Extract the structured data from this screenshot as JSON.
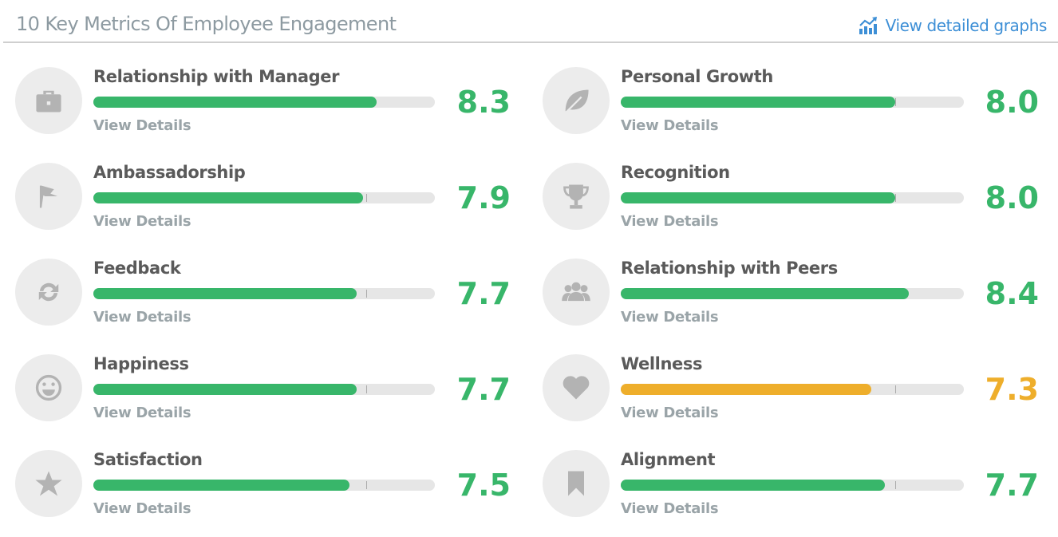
{
  "header": {
    "title": "10 Key Metrics Of Employee Engagement",
    "link_label": "View detailed graphs",
    "link_icon": "chart-line-icon"
  },
  "details_label": "View Details",
  "scale_max": 10,
  "benchmark": 8.0,
  "colors": {
    "good": "#38b66a",
    "warning": "#eeae2b",
    "link": "#3d8fd6",
    "icon": "#b3b3b3"
  },
  "metrics": [
    {
      "name": "Relationship with Manager",
      "value": "8.3",
      "icon": "briefcase-icon",
      "status": "good"
    },
    {
      "name": "Ambassadorship",
      "value": "7.9",
      "icon": "flag-icon",
      "status": "good"
    },
    {
      "name": "Feedback",
      "value": "7.7",
      "icon": "refresh-icon",
      "status": "good"
    },
    {
      "name": "Happiness",
      "value": "7.7",
      "icon": "smile-icon",
      "status": "good"
    },
    {
      "name": "Satisfaction",
      "value": "7.5",
      "icon": "star-icon",
      "status": "good"
    },
    {
      "name": "Personal Growth",
      "value": "8.0",
      "icon": "leaf-icon",
      "status": "good"
    },
    {
      "name": "Recognition",
      "value": "8.0",
      "icon": "trophy-icon",
      "status": "good"
    },
    {
      "name": "Relationship with Peers",
      "value": "8.4",
      "icon": "users-icon",
      "status": "good"
    },
    {
      "name": "Wellness",
      "value": "7.3",
      "icon": "heart-icon",
      "status": "warning"
    },
    {
      "name": "Alignment",
      "value": "7.7",
      "icon": "bookmark-icon",
      "status": "good"
    }
  ]
}
